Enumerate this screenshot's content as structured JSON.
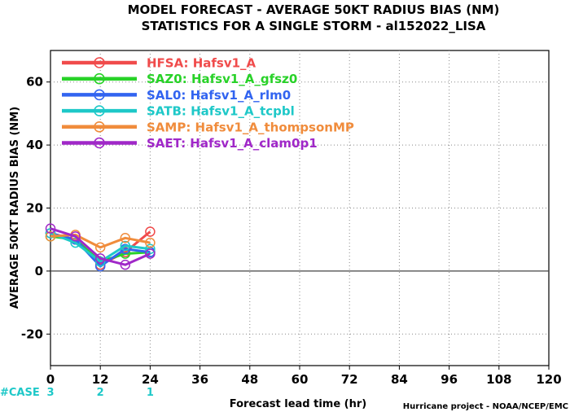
{
  "chart_data": {
    "type": "line",
    "title_lines": [
      "MODEL FORECAST - AVERAGE 50KT RADIUS BIAS (NM)",
      "STATISTICS FOR A SINGLE STORM - al152022_LISA"
    ],
    "xlabel": "Forecast lead time (hr)",
    "ylabel": "AVERAGE 50KT RADIUS BIAS (NM)",
    "xlim": [
      0,
      120
    ],
    "ylim": [
      -30,
      70
    ],
    "x_ticks": [
      0,
      12,
      24,
      36,
      48,
      60,
      72,
      84,
      96,
      108,
      120
    ],
    "y_ticks": [
      -20,
      0,
      20,
      40,
      60
    ],
    "grid": "dotted",
    "zero_line": true,
    "legend_position": "top-left",
    "series": [
      {
        "id": "HFSA",
        "name": "Hafsv1_A",
        "color": "#f04b4b",
        "x": [
          0,
          6,
          12,
          18,
          24
        ],
        "values": [
          12,
          10,
          2,
          6,
          12.5
        ]
      },
      {
        "id": "SAZ0",
        "name": "Hafsv1_A_gfsz0",
        "color": "#28d228",
        "x": [
          0,
          6,
          12,
          18,
          24
        ],
        "values": [
          11,
          10,
          3,
          5.5,
          6
        ]
      },
      {
        "id": "SAL0",
        "name": "Hafsv1_A_rlm0",
        "color": "#3264f0",
        "x": [
          0,
          6,
          12,
          18,
          24
        ],
        "values": [
          12,
          10,
          1.5,
          7,
          6
        ]
      },
      {
        "id": "SATB",
        "name": "Hafsv1_A_tcpbl",
        "color": "#1ec8c8",
        "x": [
          0,
          6,
          12,
          18,
          24
        ],
        "values": [
          12,
          9,
          3,
          8,
          7
        ]
      },
      {
        "id": "SAMP",
        "name": "Hafsv1_A_thompsonMP",
        "color": "#f08c3c",
        "x": [
          0,
          6,
          12,
          18,
          24
        ],
        "values": [
          11,
          11.5,
          7.5,
          10.5,
          9
        ]
      },
      {
        "id": "SAET",
        "name": "Hafsv1_A_clam0p1",
        "color": "#a028c8",
        "x": [
          0,
          6,
          12,
          18,
          24
        ],
        "values": [
          13.5,
          11,
          4,
          2,
          5.5
        ]
      }
    ],
    "case_counts": {
      "label": "#CASE",
      "x": [
        0,
        12,
        24
      ],
      "values": [
        "3",
        "2",
        "1"
      ]
    },
    "credit": "Hurricane project - NOAA/NCEP/EMC"
  }
}
